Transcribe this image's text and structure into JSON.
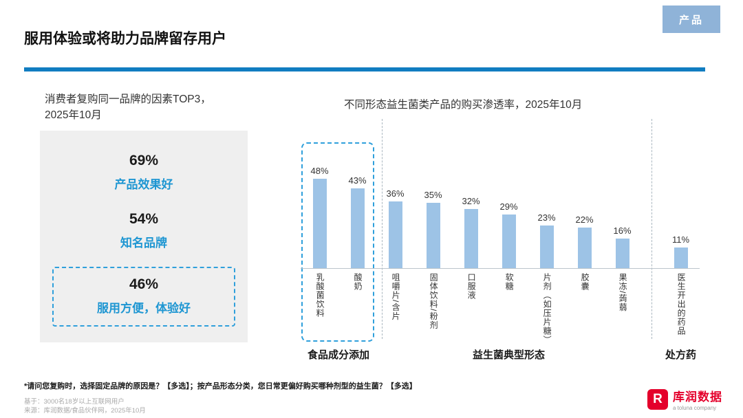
{
  "badge": {
    "label": "产品"
  },
  "header": {
    "title": "服用体验或将助力品牌留存用户"
  },
  "left_panel": {
    "title": "消费者复购同一品牌的因素TOP3，\n2025年10月",
    "factors": [
      {
        "value": "69%",
        "label": "产品效果好",
        "boxed": false
      },
      {
        "value": "54%",
        "label": "知名品牌",
        "boxed": false
      },
      {
        "value": "46%",
        "label": "服用方便，体验好",
        "boxed": true
      }
    ]
  },
  "chart_data": {
    "type": "bar",
    "title": "不同形态益生菌类产品的购买渗透率，2025年10月",
    "categories": [
      "乳酸菌饮料",
      "酸奶",
      "咀嚼片/含片",
      "固体饮料/粉剂",
      "口服液",
      "软糖",
      "片剂（如压片糖）",
      "胶囊",
      "果冻/蒟蒻",
      "医生开出的药品"
    ],
    "values": [
      48,
      43,
      36,
      35,
      32,
      29,
      23,
      22,
      16,
      11
    ],
    "unit": "%",
    "ylim": [
      0,
      50
    ],
    "grid": false,
    "bar_color": "#9DC3E6",
    "groups": [
      {
        "label": "食品成分添加",
        "start": 0,
        "end": 1,
        "style": "dashed-box"
      },
      {
        "label": "益生菌典型形态",
        "start": 2,
        "end": 8,
        "style": "plain"
      },
      {
        "label": "处方药",
        "start": 9,
        "end": 9,
        "style": "plain"
      }
    ]
  },
  "footer": {
    "footnote": "*请问您复购时，选择固定品牌的原因是？【多选】；按产品形态分类，您日常更偏好购买哪种剂型的益生菌？【多选】",
    "based_on": "基于：3000名18岁以上互联网用户",
    "source_line": "来源：库润数据/食品伙伴网，2025年10月"
  },
  "logo": {
    "brand": "库润数据",
    "subtitle": "a toluna company"
  }
}
